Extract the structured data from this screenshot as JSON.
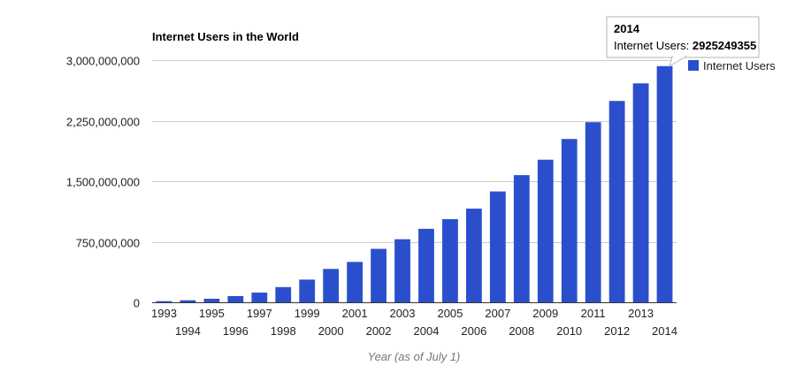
{
  "chart_data": {
    "type": "bar",
    "title": "Internet Users in the World",
    "xlabel": "Year (as of July 1)",
    "ylabel": "",
    "ylim": [
      0,
      3000000000
    ],
    "yticks": [
      0,
      750000000,
      1500000000,
      2250000000,
      3000000000
    ],
    "ytick_labels": [
      "0",
      "750,000,000",
      "1,500,000,000",
      "2,250,000,000",
      "3,000,000,000"
    ],
    "grid": true,
    "legend_position": "right",
    "categories": [
      "1993",
      "1994",
      "1995",
      "1996",
      "1997",
      "1998",
      "1999",
      "2000",
      "2001",
      "2002",
      "2003",
      "2004",
      "2005",
      "2006",
      "2007",
      "2008",
      "2009",
      "2010",
      "2011",
      "2012",
      "2013",
      "2014"
    ],
    "series": [
      {
        "name": "Internet Users",
        "color": "#2b4fcc",
        "values": [
          14000000,
          25000000,
          44000000,
          77000000,
          120000000,
          188000000,
          281000000,
          413000000,
          500000000,
          662000000,
          781000000,
          910000000,
          1030000000,
          1160000000,
          1373000000,
          1575000000,
          1766000000,
          2023000000,
          2231000000,
          2494000000,
          2712000000,
          2925249355
        ]
      }
    ],
    "tooltip": {
      "category": "2014",
      "label": "Internet Users: ",
      "value": "2925249355"
    }
  }
}
